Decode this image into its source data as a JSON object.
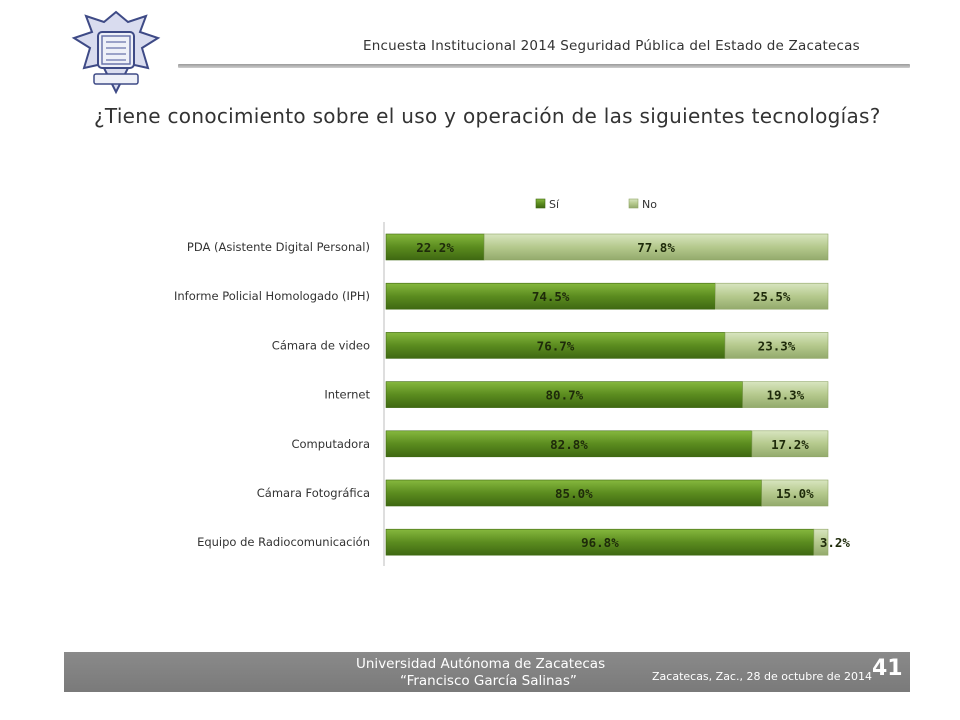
{
  "header": {
    "logo_icon": "university-seal-icon",
    "title": "Encuesta Institucional 2014 Seguridad Pública del Estado de Zacatecas"
  },
  "question": "¿Tiene conocimiento sobre el uso y operación de las siguientes tecnologías?",
  "chart_data": {
    "type": "bar",
    "orientation": "horizontal",
    "stacked": true,
    "categories": [
      "PDA (Asistente Digital Personal)",
      "Informe Policial Homologado (IPH)",
      "Cámara de video",
      "Internet",
      "Computadora",
      "Cámara Fotográfica",
      "Equipo de Radiocomunicación"
    ],
    "series": [
      {
        "name": "Sí",
        "color": "#5b8c1f",
        "values": [
          22.2,
          74.5,
          76.7,
          80.7,
          82.8,
          85.0,
          96.8
        ],
        "labels": [
          "22.2%",
          "74.5%",
          "76.7%",
          "80.7%",
          "82.8%",
          "85.0%",
          "96.8%"
        ]
      },
      {
        "name": "No",
        "color": "#b5c98d",
        "values": [
          77.8,
          25.5,
          23.3,
          19.3,
          17.2,
          15.0,
          3.2
        ],
        "labels": [
          "77.8%",
          "25.5%",
          "23.3%",
          "19.3%",
          "17.2%",
          "15.0%",
          "3.2%"
        ]
      }
    ],
    "xlim": [
      0,
      100
    ],
    "legend_position": "top",
    "grid": false
  },
  "footer": {
    "university": "Universidad Autónoma de Zacatecas",
    "subtitle": "“Francisco García Salinas”",
    "date": "Zacatecas, Zac., 28 de octubre de 2014",
    "page_number": "41"
  }
}
